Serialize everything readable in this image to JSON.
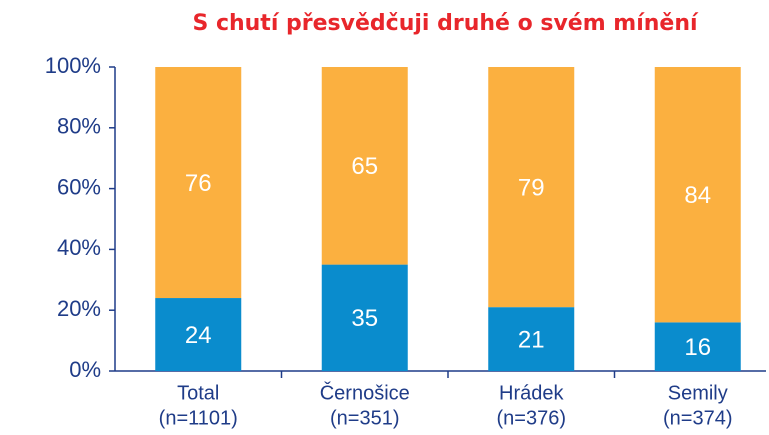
{
  "chart_data": {
    "type": "stacked_bar",
    "title": "S chutí přesvědčuji druhé o svém mínění",
    "categories": [
      [
        "Total",
        "(n=1101)"
      ],
      [
        "Černošice",
        "(n=351)"
      ],
      [
        "Hrádek",
        "(n=376)"
      ],
      [
        "Semily",
        "(n=374)"
      ]
    ],
    "series": [
      {
        "color": "#0a8ccd",
        "values": [
          24,
          35,
          21,
          16
        ]
      },
      {
        "color": "#fbb040",
        "values": [
          76,
          65,
          79,
          84
        ]
      }
    ],
    "ylim": [
      0,
      100
    ],
    "yticks": [
      {
        "value": 0,
        "label": "0%"
      },
      {
        "value": 20,
        "label": "20%"
      },
      {
        "value": 40,
        "label": "40%"
      },
      {
        "value": 60,
        "label": "60%"
      },
      {
        "value": 80,
        "label": "80%"
      },
      {
        "value": 100,
        "label": "100%"
      }
    ]
  }
}
